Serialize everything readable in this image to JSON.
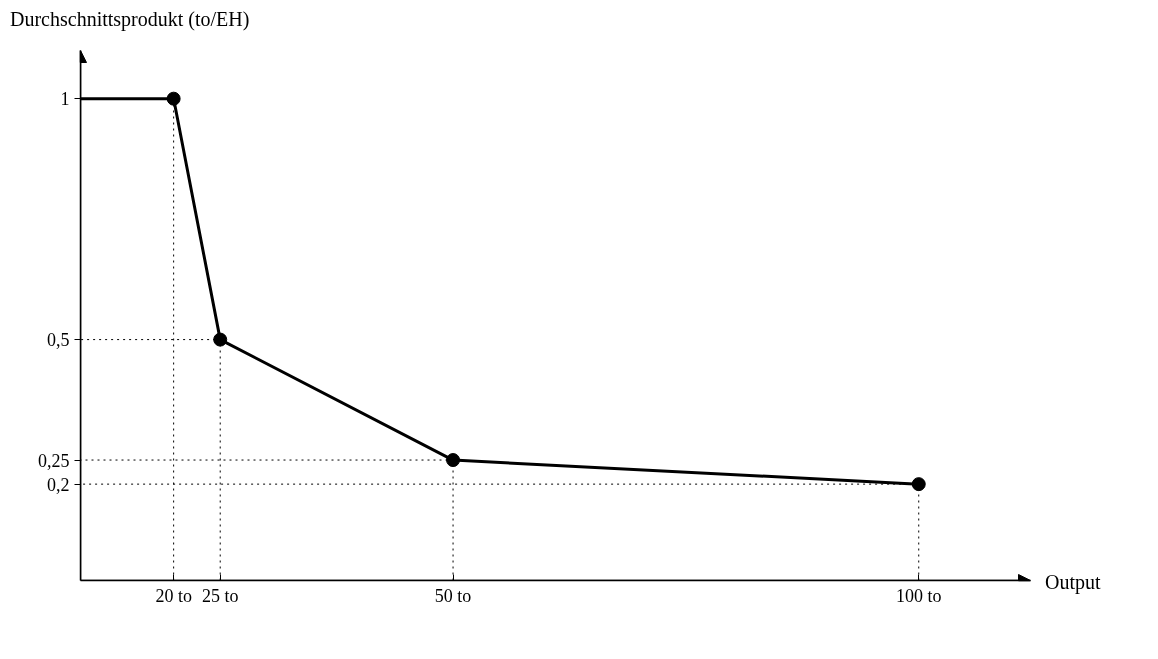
{
  "chart_data": {
    "type": "line",
    "xlabel": "Output",
    "ylabel": "Durchschnittsprodukt (to/EH)",
    "xlim": [
      10,
      112
    ],
    "ylim": [
      0,
      1.1
    ],
    "xticks": [
      {
        "value": 20,
        "label": "20 to"
      },
      {
        "value": 25,
        "label": "25 to"
      },
      {
        "value": 50,
        "label": "50 to"
      },
      {
        "value": 100,
        "label": "100 to"
      }
    ],
    "yticks": [
      {
        "value": 0.2,
        "label": "0,2"
      },
      {
        "value": 0.25,
        "label": "0,25"
      },
      {
        "value": 0.5,
        "label": "0,5"
      },
      {
        "value": 1,
        "label": "1"
      }
    ],
    "grid": false,
    "series": [
      {
        "color": "#000000",
        "x": [
          10,
          20,
          25,
          50,
          100
        ],
        "values": [
          1,
          1,
          0.5,
          0.25,
          0.2
        ]
      },
      {
        "type": "line",
        "line_style": "dotted",
        "color": "#000000",
        "x": [
          20,
          20,
          10
        ],
        "values": [
          0,
          1,
          1
        ]
      },
      {
        "type": "line",
        "line_style": "dotted",
        "color": "#000000",
        "x": [
          25,
          25,
          10
        ],
        "values": [
          0,
          0.5,
          0.5
        ]
      },
      {
        "type": "line",
        "line_style": "dotted",
        "color": "#000000",
        "x": [
          50,
          50,
          10
        ],
        "values": [
          0,
          0.25,
          0.25
        ]
      },
      {
        "type": "line",
        "line_style": "dotted",
        "color": "#000000",
        "x": [
          100,
          100,
          10
        ],
        "values": [
          0,
          0.2,
          0.2
        ]
      },
      {
        "type": "scatter",
        "color": "#000000",
        "marker": "circle",
        "x": [
          20,
          25,
          50,
          100
        ],
        "values": [
          1,
          0.5,
          0.25,
          0.2
        ]
      }
    ]
  }
}
